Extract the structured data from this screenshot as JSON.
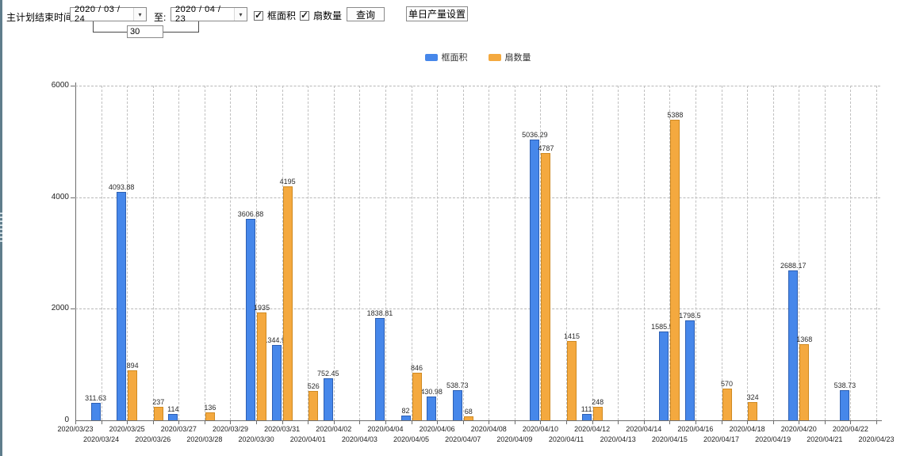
{
  "toolbar": {
    "label_end_time": "主计划结束时间:",
    "date_from": "2020 / 03 / 24",
    "to_label": "至:",
    "date_to": "2020 / 04 / 23",
    "days_value": "30",
    "checkbox_area": {
      "label": "框面积",
      "checked": true
    },
    "checkbox_fans": {
      "label": "扇数量",
      "checked": true
    },
    "query_button": "查询",
    "daily_output_button": "单日产量设置"
  },
  "colors": {
    "series_frame": "#4687ea",
    "series_fans": "#f4a93f",
    "axis": "#6e6e6e"
  },
  "chart_data": {
    "type": "bar",
    "title": "",
    "xlabel": "",
    "ylabel": "",
    "ylim": [
      0,
      6000
    ],
    "yticks": [
      0,
      2000,
      4000,
      6000
    ],
    "grid": true,
    "legend_position": "top",
    "categories": [
      "2020/03/23",
      "2020/03/24",
      "2020/03/25",
      "2020/03/26",
      "2020/03/27",
      "2020/03/28",
      "2020/03/29",
      "2020/03/30",
      "2020/03/31",
      "2020/04/01",
      "2020/04/02",
      "2020/04/03",
      "2020/04/04",
      "2020/04/05",
      "2020/04/06",
      "2020/04/07",
      "2020/04/08",
      "2020/04/09",
      "2020/04/10",
      "2020/04/11",
      "2020/04/12",
      "2020/04/13",
      "2020/04/14",
      "2020/04/15",
      "2020/04/16",
      "2020/04/17",
      "2020/04/18",
      "2020/04/19",
      "2020/04/20",
      "2020/04/21",
      "2020/04/22",
      "2020/04/23"
    ],
    "series": [
      {
        "name": "框面积",
        "color": "#4687ea",
        "values": [
          null,
          311.63,
          4093.88,
          null,
          114,
          null,
          null,
          3606.88,
          1344.95,
          null,
          752.45,
          null,
          1838.81,
          82,
          430.98,
          538.73,
          null,
          null,
          5036.29,
          null,
          111,
          null,
          null,
          1585.96,
          1798.5,
          null,
          null,
          null,
          2688.17,
          null,
          538.73,
          null
        ]
      },
      {
        "name": "扇数量",
        "color": "#f4a93f",
        "values": [
          null,
          null,
          894,
          237,
          null,
          136,
          null,
          1935,
          4195,
          526,
          null,
          null,
          null,
          846,
          null,
          68,
          null,
          null,
          4787,
          1415,
          248,
          null,
          null,
          5388,
          null,
          570,
          324,
          null,
          1368,
          null,
          null,
          null
        ]
      }
    ]
  }
}
